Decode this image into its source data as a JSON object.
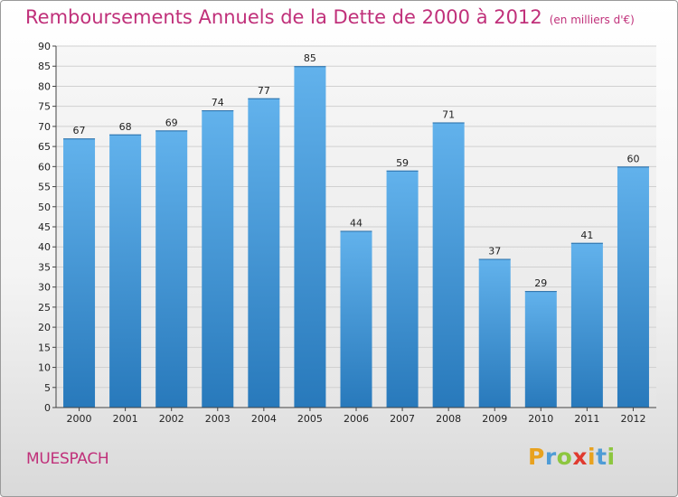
{
  "header": {
    "title": "Remboursements Annuels de la Dette de 2000 à 2012",
    "unit": "(en milliers d'€)"
  },
  "footer": {
    "commune": "MUESPACH",
    "logo": "Proxiti"
  },
  "colors": {
    "title": "#c0307a",
    "bar_top": "#62b2ec",
    "bar_bottom": "#2879bb",
    "logo_letters": [
      "#e8a21f",
      "#4f9cd6",
      "#8dc63f",
      "#e03a2f",
      "#e8a21f",
      "#4f9cd6",
      "#8dc63f"
    ]
  },
  "chart_data": {
    "type": "bar",
    "title": "Remboursements Annuels de la Dette de 2000 à 2012",
    "xlabel": "",
    "ylabel": "",
    "categories": [
      "2000",
      "2001",
      "2002",
      "2003",
      "2004",
      "2005",
      "2006",
      "2007",
      "2008",
      "2009",
      "2010",
      "2011",
      "2012"
    ],
    "values": [
      67,
      68,
      69,
      74,
      77,
      85,
      44,
      59,
      71,
      37,
      29,
      41,
      60
    ],
    "ylim": [
      0,
      90
    ],
    "yticks": [
      0,
      5,
      10,
      15,
      20,
      25,
      30,
      35,
      40,
      45,
      50,
      55,
      60,
      65,
      70,
      75,
      80,
      85,
      90
    ],
    "grid": true,
    "legend": "none",
    "data_labels": true
  }
}
